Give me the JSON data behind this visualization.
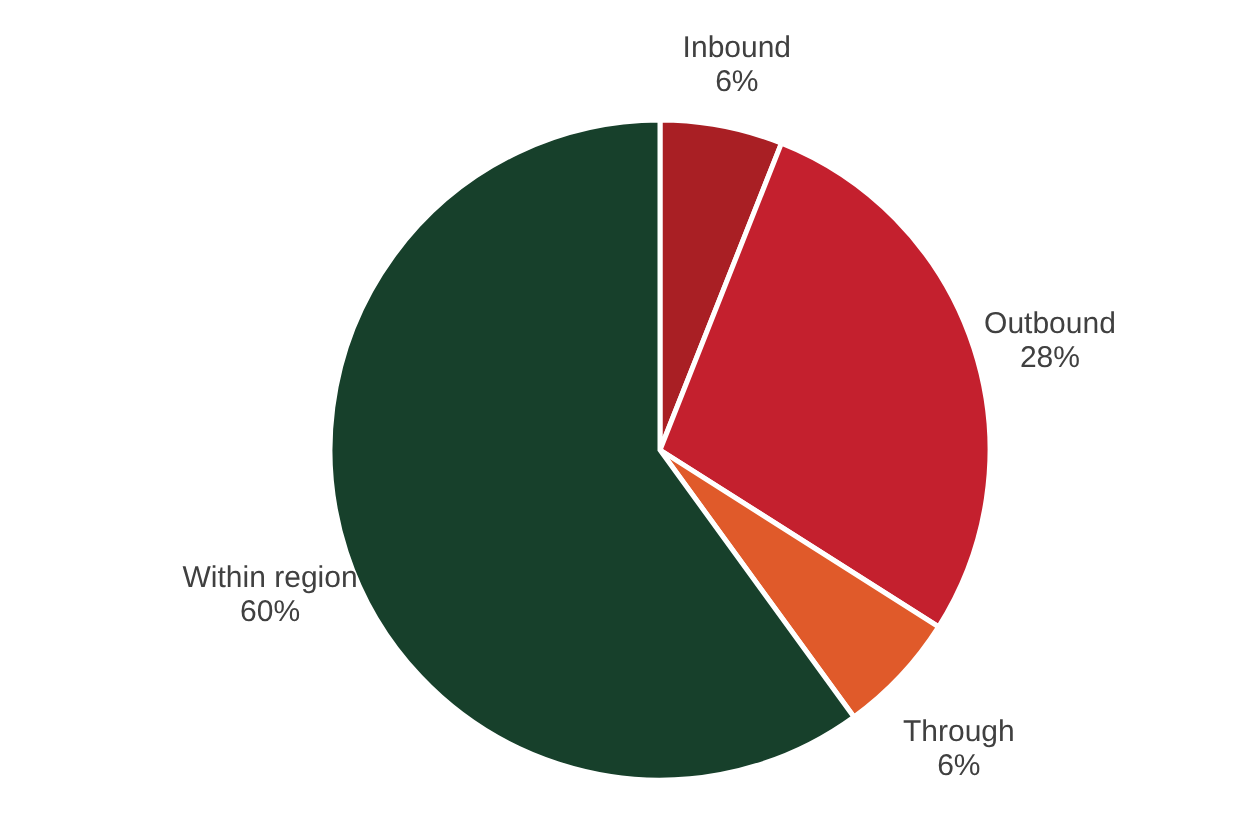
{
  "chart_data": {
    "type": "pie",
    "categories": [
      "Inbound",
      "Outbound",
      "Through",
      "Within region"
    ],
    "values": [
      6,
      28,
      6,
      60
    ],
    "value_labels": [
      "6%",
      "28%",
      "6%",
      "60%"
    ],
    "colors": [
      "#a91f24",
      "#c4202e",
      "#e05a2a",
      "#17402b"
    ]
  }
}
